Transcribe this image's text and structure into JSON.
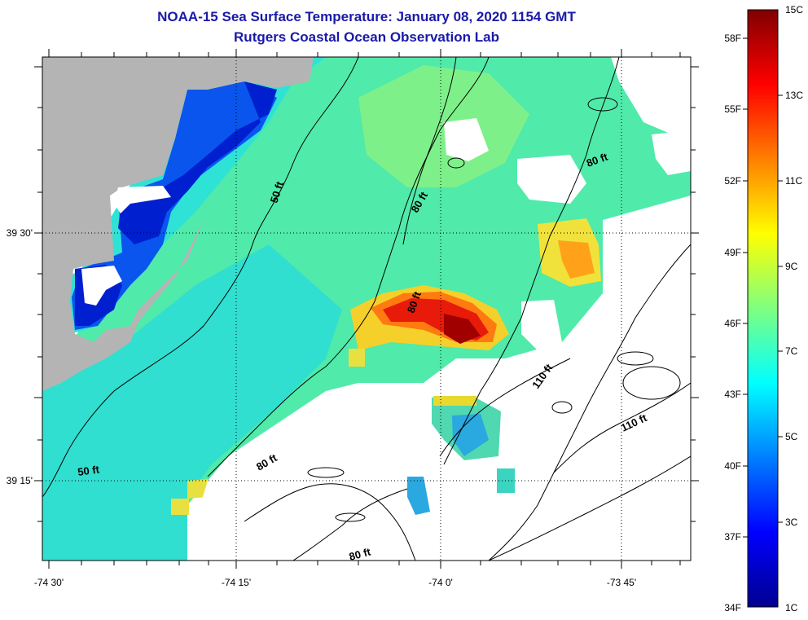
{
  "header": {
    "title": "NOAA-15 Sea Surface Temperature:  January 08, 2020 1154 GMT",
    "subtitle": "Rutgers Coastal Ocean Observation Lab"
  },
  "map": {
    "x_ticks": [
      "-74 30'",
      "-74 15'",
      "-74 0'",
      "-73 45'"
    ],
    "y_ticks": [
      "39 30'",
      "39 15'"
    ],
    "contour_labels": [
      "50 ft",
      "50 ft",
      "80 ft",
      "80 ft",
      "80 ft",
      "80 ft",
      "80 ft",
      "110 ft",
      "110 ft"
    ]
  },
  "colorbar": {
    "fahrenheit": [
      "58F",
      "55F",
      "52F",
      "49F",
      "46F",
      "43F",
      "40F",
      "37F",
      "34F"
    ],
    "celsius": [
      "15C",
      "13C",
      "11C",
      "9C",
      "7C",
      "5C",
      "3C",
      "1C"
    ],
    "colors": [
      "#00008f",
      "#0000ff",
      "#007fff",
      "#00ffff",
      "#7fff7f",
      "#ffff00",
      "#ff7f00",
      "#ff0000",
      "#800000"
    ]
  }
}
